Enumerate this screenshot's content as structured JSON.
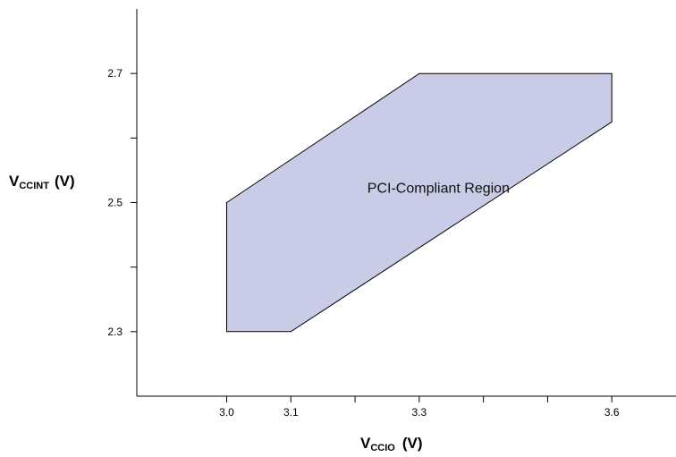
{
  "chart_data": {
    "type": "area",
    "region": {
      "label": "PCI-Compliant Region",
      "polygon": [
        {
          "x": 3.0,
          "y": 2.5
        },
        {
          "x": 3.3,
          "y": 2.7
        },
        {
          "x": 3.6,
          "y": 2.7
        },
        {
          "x": 3.6,
          "y": 2.625
        },
        {
          "x": 3.1,
          "y": 2.3
        },
        {
          "x": 3.0,
          "y": 2.3
        }
      ],
      "fill": "#c8cce6",
      "stroke": "#000000"
    },
    "xlim": [
      2.86,
      3.7
    ],
    "ylim": [
      2.2,
      2.8
    ],
    "x_ticks": [
      3.0,
      3.1,
      3.2,
      3.3,
      3.4,
      3.5,
      3.6
    ],
    "x_tick_labels": [
      {
        "value": 3.0,
        "text": "3.0"
      },
      {
        "value": 3.1,
        "text": "3.1"
      },
      {
        "value": 3.3,
        "text": "3.3"
      },
      {
        "value": 3.6,
        "text": "3.6"
      }
    ],
    "y_ticks": [
      2.3,
      2.4,
      2.5,
      2.6,
      2.7
    ],
    "y_tick_labels": [
      {
        "value": 2.3,
        "text": "2.3"
      },
      {
        "value": 2.5,
        "text": "2.5"
      },
      {
        "value": 2.7,
        "text": "2.7"
      }
    ],
    "xlabel": {
      "main": "V",
      "sub": "CCIO",
      "unit": "(V)"
    },
    "ylabel": {
      "main": "V",
      "sub": "CCINT",
      "unit": "(V)"
    },
    "grid": false
  }
}
